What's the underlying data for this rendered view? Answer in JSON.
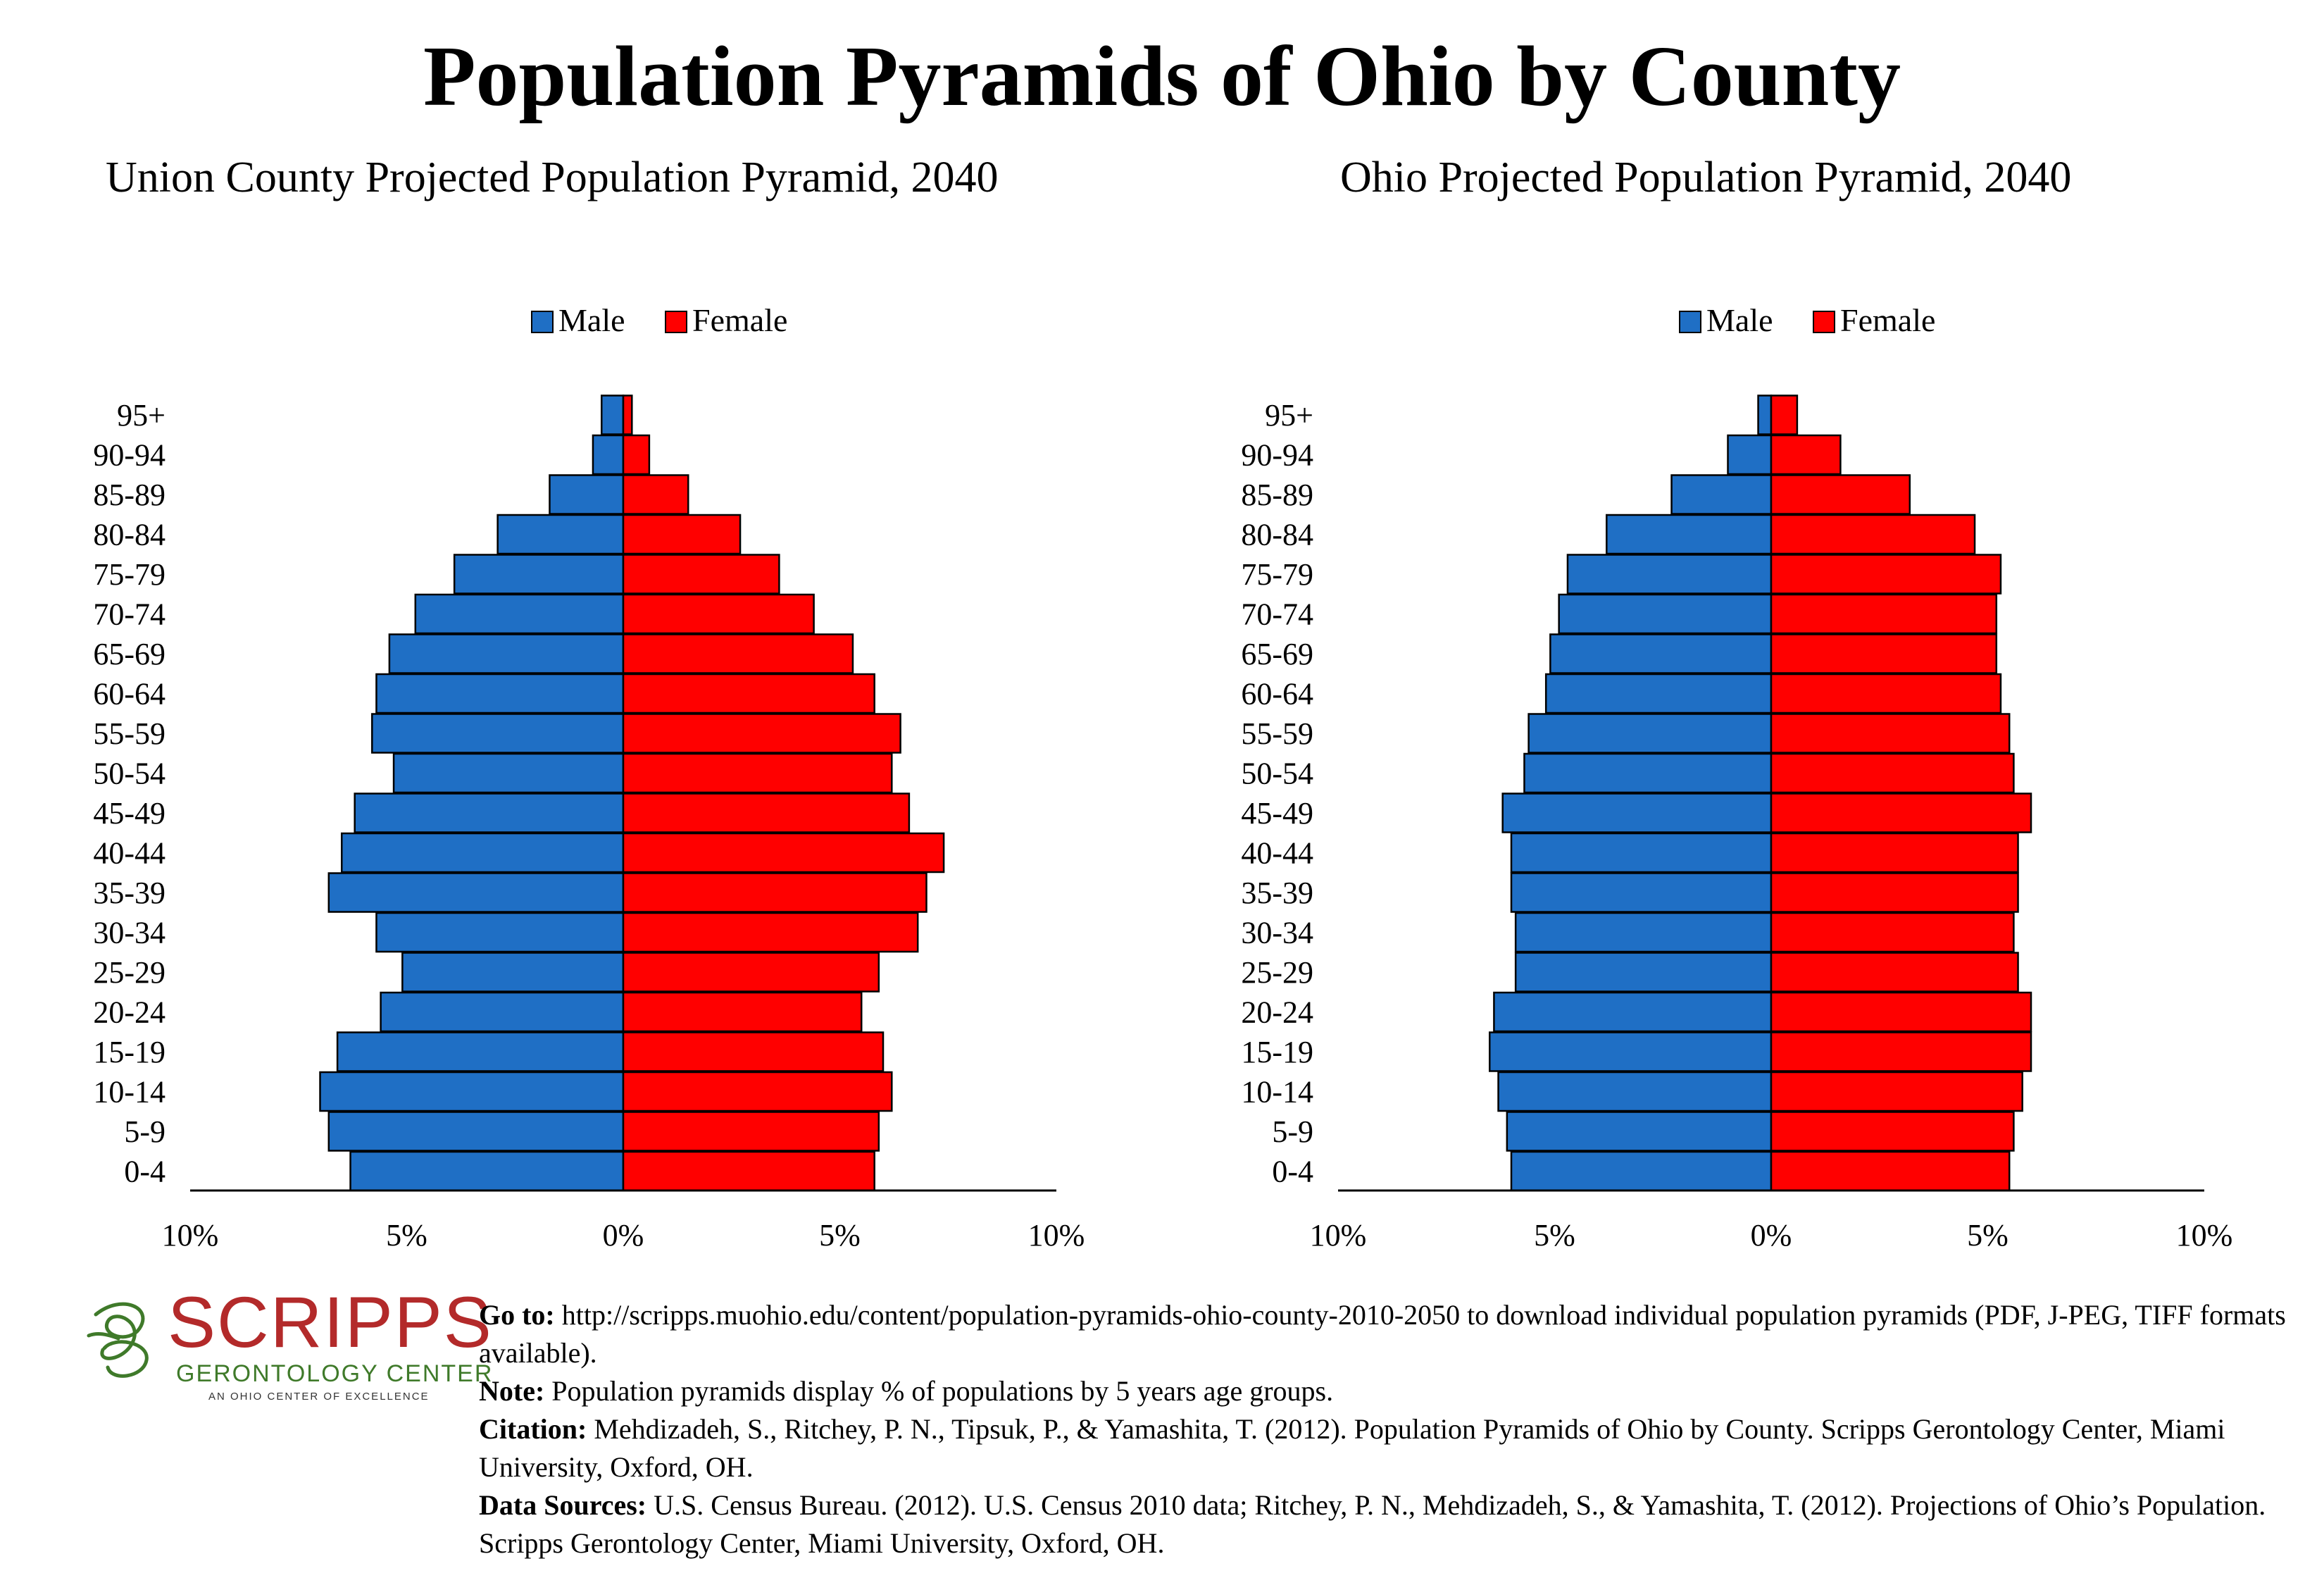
{
  "title": "Population Pyramids of Ohio by County",
  "chart_data": [
    {
      "type": "bar",
      "title": "Union County Projected Population Pyramid, 2040",
      "legend": {
        "position": "top",
        "entries": [
          "Male",
          "Female"
        ]
      },
      "categories": [
        "0-4",
        "5-9",
        "10-14",
        "15-19",
        "20-24",
        "25-29",
        "30-34",
        "35-39",
        "40-44",
        "45-49",
        "50-54",
        "55-59",
        "60-64",
        "65-69",
        "70-74",
        "75-79",
        "80-84",
        "85-89",
        "90-94",
        "95+"
      ],
      "series": [
        {
          "name": "Male",
          "color": "#1f6fc5",
          "values": [
            6.3,
            6.8,
            7.0,
            6.6,
            5.6,
            5.1,
            5.7,
            6.8,
            6.5,
            6.2,
            5.3,
            5.8,
            5.7,
            5.4,
            4.8,
            3.9,
            2.9,
            1.7,
            0.7,
            0.5
          ]
        },
        {
          "name": "Female",
          "color": "#ff0000",
          "values": [
            5.8,
            5.9,
            6.2,
            6.0,
            5.5,
            5.9,
            6.8,
            7.0,
            7.4,
            6.6,
            6.2,
            6.4,
            5.8,
            5.3,
            4.4,
            3.6,
            2.7,
            1.5,
            0.6,
            0.2
          ]
        }
      ],
      "xlim": [
        -10,
        10
      ],
      "x_tick_labels": [
        "10%",
        "5%",
        "0%",
        "5%",
        "10%"
      ]
    },
    {
      "type": "bar",
      "title": "Ohio Projected Population Pyramid, 2040",
      "legend": {
        "position": "top",
        "entries": [
          "Male",
          "Female"
        ]
      },
      "categories": [
        "0-4",
        "5-9",
        "10-14",
        "15-19",
        "20-24",
        "25-29",
        "30-34",
        "35-39",
        "40-44",
        "45-49",
        "50-54",
        "55-59",
        "60-64",
        "65-69",
        "70-74",
        "75-79",
        "80-84",
        "85-89",
        "90-94",
        "95+"
      ],
      "series": [
        {
          "name": "Male",
          "color": "#1f6fc5",
          "values": [
            6.0,
            6.1,
            6.3,
            6.5,
            6.4,
            5.9,
            5.9,
            6.0,
            6.0,
            6.2,
            5.7,
            5.6,
            5.2,
            5.1,
            4.9,
            4.7,
            3.8,
            2.3,
            1.0,
            0.3
          ]
        },
        {
          "name": "Female",
          "color": "#ff0000",
          "values": [
            5.5,
            5.6,
            5.8,
            6.0,
            6.0,
            5.7,
            5.6,
            5.7,
            5.7,
            6.0,
            5.6,
            5.5,
            5.3,
            5.2,
            5.2,
            5.3,
            4.7,
            3.2,
            1.6,
            0.6
          ]
        }
      ],
      "xlim": [
        -10,
        10
      ],
      "x_tick_labels": [
        "10%",
        "5%",
        "0%",
        "5%",
        "10%"
      ]
    }
  ],
  "logo": {
    "word": "SCRIPPS",
    "line1": "GERONTOLOGY CENTER",
    "line2": "AN OHIO CENTER OF EXCELLENCE",
    "colors": {
      "word": "#b32a2a",
      "mark": "#3f7a2a"
    }
  },
  "footnotes": {
    "goto_label": "Go to:",
    "goto_text": " http://scripps.muohio.edu/content/population-pyramids-ohio-county-2010-2050 to download individual population pyramids (PDF, J-PEG, TIFF formats available).",
    "note_label": "Note:",
    "note_text": " Population pyramids display % of populations by 5 years age groups.",
    "citation_label": "Citation:",
    "citation_text": " Mehdizadeh, S., Ritchey, P. N., Tipsuk, P., & Yamashita, T. (2012). Population Pyramids of Ohio by County. Scripps Gerontology Center, Miami University, Oxford, OH.",
    "sources_label": "Data Sources:",
    "sources_text": " U.S. Census Bureau. (2012). U.S. Census 2010 data; Ritchey, P. N., Mehdizadeh, S., & Yamashita, T. (2012). Projections of Ohio’s Population. Scripps Gerontology Center, Miami University, Oxford, OH."
  }
}
